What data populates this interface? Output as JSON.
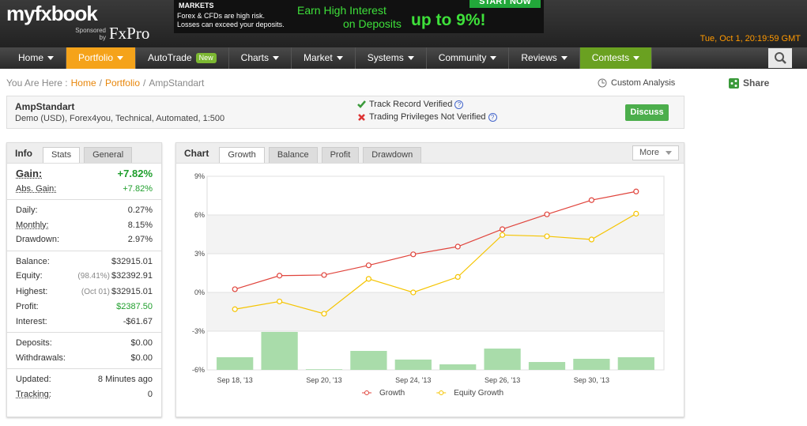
{
  "header": {
    "logo": "myfxbook",
    "sponsored": "Sponsored by",
    "sponsor": "FxPro",
    "ad": {
      "brand": "MARKETS",
      "risk_lines": [
        "Forex & CFDs are high risk.",
        "Losses can exceed your deposits."
      ],
      "headline": "Earn High Interest",
      "subline": "on Deposits",
      "highlight": "up to 9%!",
      "button": "START NOW"
    },
    "datetime": "Tue, Oct 1, 20:19:59 GMT"
  },
  "nav": [
    {
      "label": "Home",
      "dropdown": true
    },
    {
      "label": "Portfolio",
      "dropdown": true,
      "color": "#f5a31a"
    },
    {
      "label": "AutoTrade",
      "badge": "New"
    },
    {
      "label": "Charts",
      "dropdown": true
    },
    {
      "label": "Market",
      "dropdown": true
    },
    {
      "label": "Systems",
      "dropdown": true
    },
    {
      "label": "Community",
      "dropdown": true
    },
    {
      "label": "Reviews",
      "dropdown": true
    },
    {
      "label": "Contests",
      "dropdown": true,
      "color": "#6aa121"
    }
  ],
  "breadcrumb": {
    "prefix": "You Are Here :",
    "separator": "/",
    "items": [
      "Home",
      "Portfolio",
      "AmpStandart"
    ]
  },
  "custom_analysis": "Custom Analysis",
  "share": "Share",
  "account": {
    "name": "AmpStandart",
    "description": "Demo (USD), Forex4you, Technical, Automated, 1:500",
    "verified": "Track Record Verified",
    "not_verified": "Trading Privileges Not Verified",
    "help": "?",
    "button": "Discuss"
  },
  "info": {
    "title": "Info",
    "tabs": [
      "Stats",
      "General"
    ],
    "active_tab": 0,
    "groups": [
      [
        {
          "label": "Gain:",
          "value": "+7.82%",
          "color": "#1f9e2c",
          "dotted": true,
          "big": true
        },
        {
          "label": "Abs. Gain:",
          "value": "+7.82%",
          "color": "#1f9e2c",
          "dotted": true
        }
      ],
      [
        {
          "label": "Daily:",
          "value": "0.27%"
        },
        {
          "label": "Monthly:",
          "value": "8.15%",
          "dotted": true
        },
        {
          "label": "Drawdown:",
          "value": "2.97%"
        }
      ],
      [
        {
          "label": "Balance:",
          "value": "$32915.01"
        },
        {
          "label": "Equity:",
          "note": "(98.41%)",
          "value": "$32392.91"
        },
        {
          "label": "Highest:",
          "note": "(Oct 01)",
          "value": "$32915.01"
        },
        {
          "label": "Profit:",
          "value": "$2387.50",
          "color": "#1f9e2c"
        },
        {
          "label": "Interest:",
          "value": "-$61.67"
        }
      ],
      [
        {
          "label": "Deposits:",
          "value": "$0.00"
        },
        {
          "label": "Withdrawals:",
          "value": "$0.00"
        }
      ],
      [
        {
          "label": "Updated:",
          "value": "8 Minutes ago"
        },
        {
          "label": "Tracking:",
          "value": "0",
          "dotted": true
        }
      ]
    ]
  },
  "chart_panel": {
    "title": "Chart",
    "tabs": [
      "Growth",
      "Balance",
      "Profit",
      "Drawdown"
    ],
    "active_tab": 0,
    "more": "More"
  },
  "chart_data": {
    "type": "line",
    "categories": [
      "Sep 18, '13",
      null,
      "Sep 20, '13",
      null,
      "Sep 24, '13",
      null,
      "Sep 26, '13",
      null,
      "Sep 30, '13",
      null
    ],
    "series": [
      {
        "name": "Growth",
        "color": "#e0443c",
        "values": [
          0.25,
          1.3,
          1.35,
          2.1,
          2.95,
          3.55,
          4.9,
          6.05,
          7.15,
          7.82
        ]
      },
      {
        "name": "Equity Growth",
        "color": "#f5c400",
        "values": [
          -1.3,
          -0.7,
          -1.65,
          1.05,
          0,
          1.2,
          4.45,
          4.35,
          4.1,
          6.1
        ]
      }
    ],
    "bars": {
      "color": "#a9dcaa",
      "values": [
        0.98,
        2.94,
        0.05,
        1.47,
        0.8,
        0.43,
        1.65,
        0.61,
        0.86,
        0.98
      ]
    },
    "ylim": [
      -6,
      9
    ],
    "yticks": [
      {
        "value": 9,
        "label": "9%"
      },
      {
        "value": 6,
        "label": "6%"
      },
      {
        "value": 3,
        "label": "3%"
      },
      {
        "value": 0,
        "label": "0%"
      },
      {
        "value": -3,
        "label": "-3%"
      },
      {
        "value": -6,
        "label": "-6%"
      }
    ],
    "grid": true
  }
}
